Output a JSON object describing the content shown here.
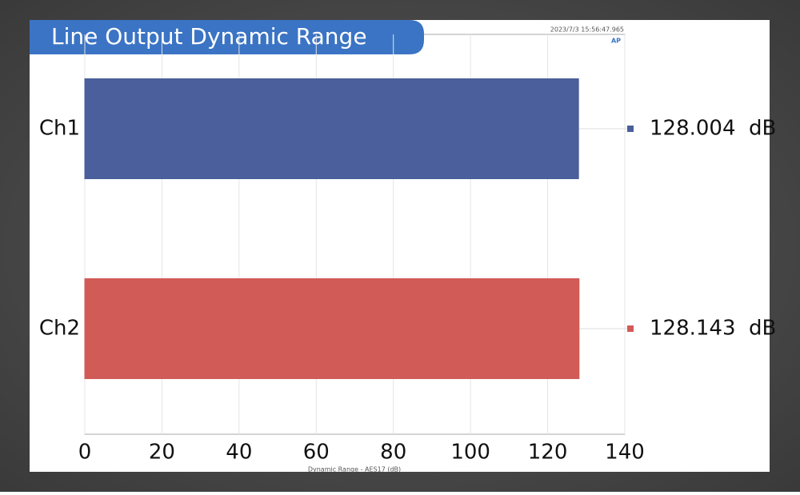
{
  "chart_data": {
    "type": "barh",
    "title": "Line Output Dynamic Range",
    "timestamp": "2023/7/3 15:56:47.965",
    "xlabel": "Dynamic Range - AES17 (dB)",
    "categories": [
      "Ch1",
      "Ch2"
    ],
    "values": [
      128.004,
      128.143
    ],
    "value_labels": [
      "128.004  dB",
      "128.143  dB"
    ],
    "colors": [
      "#4a5f9b",
      "#d15b56"
    ],
    "xlim": [
      0,
      140
    ],
    "xticks": [
      0,
      20,
      40,
      60,
      80,
      100,
      120,
      140
    ],
    "grid": true
  }
}
